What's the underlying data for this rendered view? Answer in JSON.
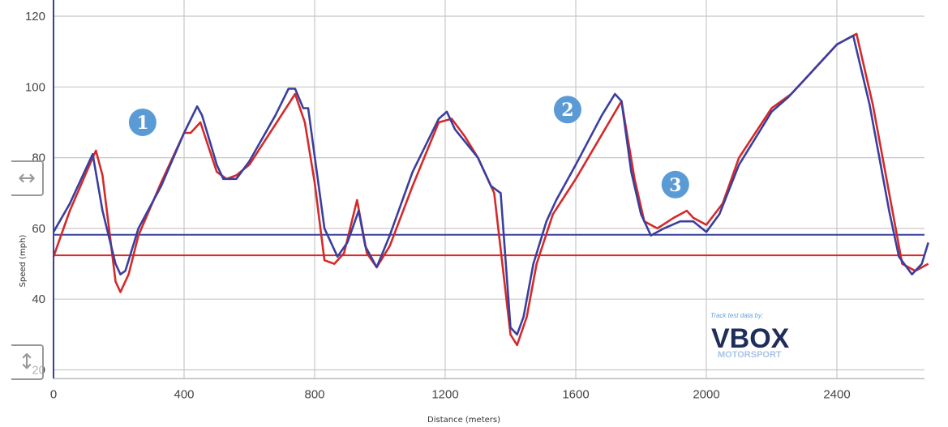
{
  "chart_data": {
    "type": "line",
    "title": "",
    "xlabel": "Distance (meters)",
    "ylabel": "Speed (mph)",
    "xlim": [
      0,
      2670
    ],
    "ylim": [
      17.5,
      124
    ],
    "x_ticks": [
      0,
      400,
      800,
      1200,
      1600,
      2000,
      2400
    ],
    "y_ticks": [
      20,
      40,
      60,
      80,
      100,
      120
    ],
    "grid": true,
    "series": [
      {
        "color": "#d42a2a",
        "points": [
          [
            0,
            52
          ],
          [
            50,
            65
          ],
          [
            120,
            80
          ],
          [
            130,
            82
          ],
          [
            150,
            75
          ],
          [
            190,
            45
          ],
          [
            205,
            42
          ],
          [
            230,
            47
          ],
          [
            260,
            58
          ],
          [
            330,
            73
          ],
          [
            400,
            87
          ],
          [
            420,
            87
          ],
          [
            450,
            90
          ],
          [
            500,
            76
          ],
          [
            530,
            74
          ],
          [
            560,
            75
          ],
          [
            600,
            78
          ],
          [
            740,
            98
          ],
          [
            770,
            90
          ],
          [
            800,
            73
          ],
          [
            830,
            51
          ],
          [
            860,
            50
          ],
          [
            890,
            53
          ],
          [
            930,
            68
          ],
          [
            960,
            53
          ],
          [
            990,
            49
          ],
          [
            1030,
            55
          ],
          [
            1100,
            72
          ],
          [
            1180,
            90
          ],
          [
            1220,
            91
          ],
          [
            1260,
            86
          ],
          [
            1300,
            80
          ],
          [
            1350,
            70
          ],
          [
            1400,
            30
          ],
          [
            1420,
            27
          ],
          [
            1450,
            35
          ],
          [
            1480,
            50
          ],
          [
            1530,
            64
          ],
          [
            1600,
            74
          ],
          [
            1740,
            96
          ],
          [
            1780,
            74
          ],
          [
            1810,
            62
          ],
          [
            1850,
            60
          ],
          [
            1900,
            63
          ],
          [
            1940,
            65
          ],
          [
            1960,
            63
          ],
          [
            2000,
            61
          ],
          [
            2050,
            67
          ],
          [
            2100,
            80
          ],
          [
            2200,
            94
          ],
          [
            2260,
            98
          ],
          [
            2300,
            102
          ],
          [
            2400,
            112
          ],
          [
            2460,
            115
          ],
          [
            2510,
            95
          ],
          [
            2580,
            60
          ],
          [
            2600,
            50
          ],
          [
            2640,
            48
          ],
          [
            2680,
            50
          ]
        ]
      },
      {
        "color": "#3a3f9e",
        "points": [
          [
            0,
            59
          ],
          [
            50,
            67
          ],
          [
            120,
            81
          ],
          [
            150,
            65
          ],
          [
            190,
            50
          ],
          [
            205,
            47
          ],
          [
            220,
            48
          ],
          [
            260,
            60
          ],
          [
            330,
            72
          ],
          [
            400,
            87
          ],
          [
            440,
            94.5
          ],
          [
            455,
            92
          ],
          [
            500,
            78
          ],
          [
            520,
            74
          ],
          [
            560,
            74
          ],
          [
            600,
            79
          ],
          [
            680,
            92
          ],
          [
            720,
            99.5
          ],
          [
            740,
            99.5
          ],
          [
            765,
            94
          ],
          [
            780,
            94
          ],
          [
            830,
            60
          ],
          [
            870,
            52
          ],
          [
            900,
            56
          ],
          [
            935,
            65
          ],
          [
            955,
            55
          ],
          [
            990,
            49
          ],
          [
            1030,
            58
          ],
          [
            1100,
            76
          ],
          [
            1180,
            91
          ],
          [
            1205,
            93
          ],
          [
            1230,
            88
          ],
          [
            1300,
            80
          ],
          [
            1340,
            72
          ],
          [
            1370,
            70
          ],
          [
            1400,
            32
          ],
          [
            1420,
            30
          ],
          [
            1440,
            35
          ],
          [
            1470,
            50
          ],
          [
            1510,
            62
          ],
          [
            1540,
            68
          ],
          [
            1600,
            78
          ],
          [
            1680,
            92
          ],
          [
            1720,
            98
          ],
          [
            1740,
            96
          ],
          [
            1770,
            76
          ],
          [
            1800,
            64
          ],
          [
            1830,
            58
          ],
          [
            1870,
            60
          ],
          [
            1920,
            62
          ],
          [
            1960,
            62
          ],
          [
            2000,
            59
          ],
          [
            2040,
            64
          ],
          [
            2100,
            78
          ],
          [
            2200,
            93
          ],
          [
            2250,
            97
          ],
          [
            2300,
            102
          ],
          [
            2400,
            112
          ],
          [
            2450,
            114.5
          ],
          [
            2500,
            95
          ],
          [
            2560,
            65
          ],
          [
            2590,
            52
          ],
          [
            2630,
            47
          ],
          [
            2660,
            50
          ],
          [
            2680,
            56
          ]
        ]
      }
    ],
    "reference_lines": [
      {
        "color": "#3a3f9e",
        "y": 58.2
      },
      {
        "color": "#d42a2a",
        "y": 52.4
      }
    ],
    "annotations": [
      {
        "label": "1",
        "x": 273,
        "y": 90
      },
      {
        "label": "2",
        "x": 1575,
        "y": 93.6
      },
      {
        "label": "3",
        "x": 1905,
        "y": 72.4
      }
    ],
    "annotation_color": "#5b9bd5",
    "watermark": {
      "caption": "Track test data by:",
      "brand": "VBOX",
      "sub": "MOTORSPORT"
    }
  },
  "controls": {
    "pan_x_icon": "↔",
    "pan_y_icon": "↕"
  }
}
